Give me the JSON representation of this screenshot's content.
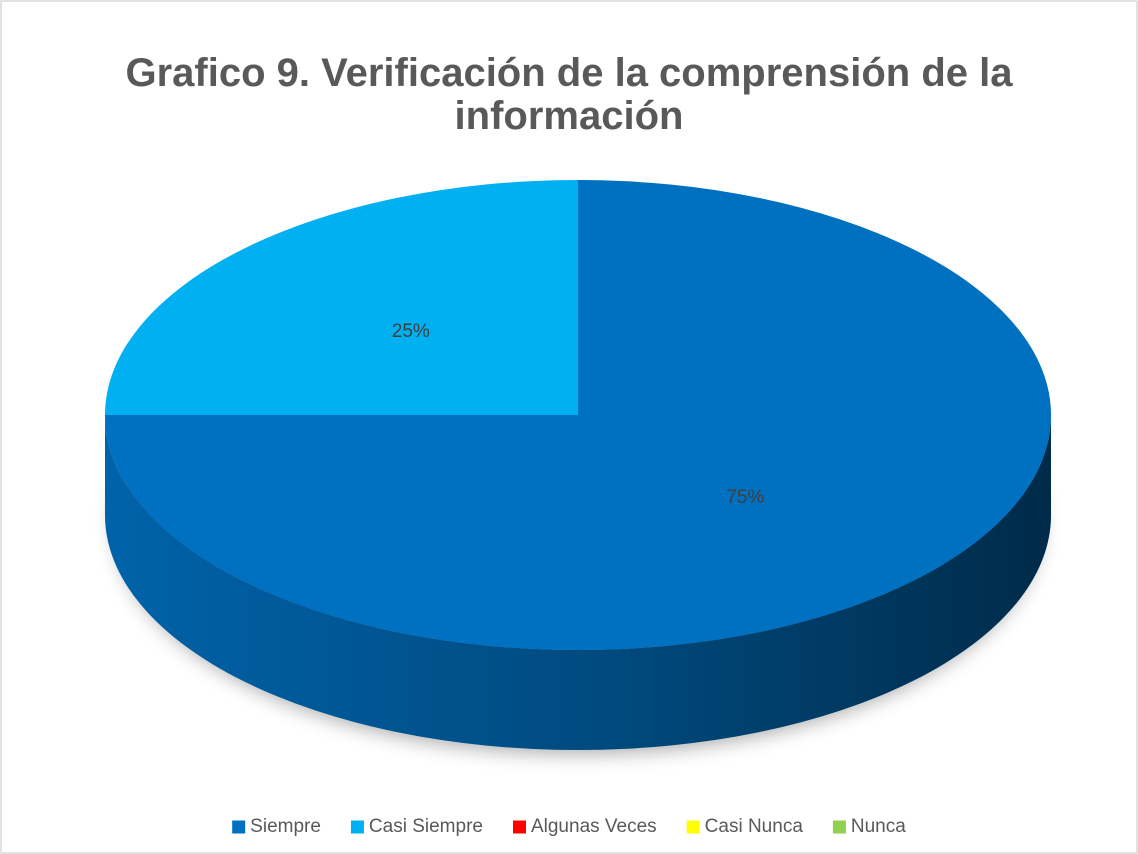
{
  "chart_data": {
    "type": "pie",
    "title": "Grafico 9. Verificación de la comprensión de la información",
    "categories": [
      "Siempre",
      "Casi Siempre",
      "Algunas Veces",
      "Casi Nunca",
      "Nunca"
    ],
    "values": [
      75,
      25,
      0,
      0,
      0
    ],
    "value_labels": [
      "75%",
      "25%",
      null,
      null,
      null
    ],
    "colors": [
      "#0070c0",
      "#00b0f0",
      "#ff0000",
      "#ffff00",
      "#92d050"
    ],
    "legend": "bottom"
  }
}
